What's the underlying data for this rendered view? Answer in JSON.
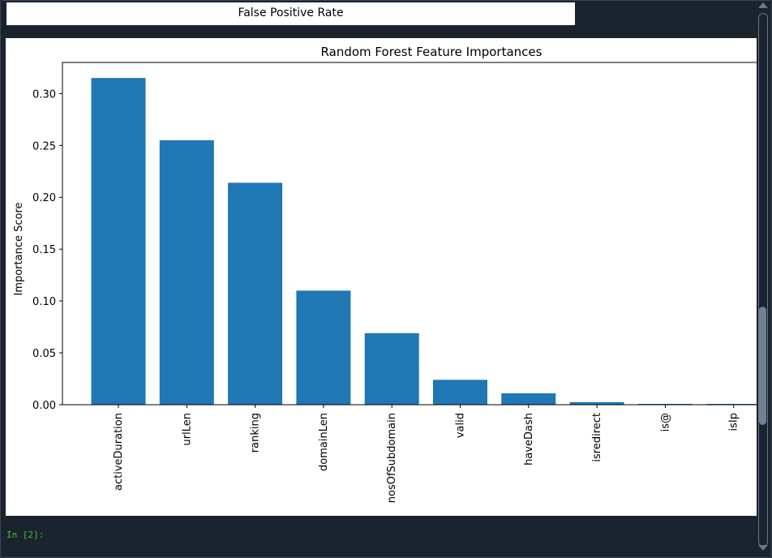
{
  "previous_output": {
    "text": "False Positive Rate"
  },
  "prompt": {
    "text": "In [2]:"
  },
  "chart_data": {
    "type": "bar",
    "title": "Random Forest Feature Importances",
    "xlabel": "",
    "ylabel": "Importance Score",
    "categories": [
      "activeDuration",
      "urlLen",
      "ranking",
      "domainLen",
      "nosOfSubdomain",
      "valid",
      "haveDash",
      "isredirect",
      "is@",
      "isIp"
    ],
    "values": [
      0.315,
      0.255,
      0.214,
      0.11,
      0.069,
      0.024,
      0.011,
      0.0025,
      0.0008,
      0.0008
    ],
    "ylim": [
      0,
      0.33
    ],
    "yticks": [
      "0.00",
      "0.05",
      "0.10",
      "0.15",
      "0.20",
      "0.25",
      "0.30"
    ],
    "bar_color": "#1f77b4",
    "grid": false
  }
}
